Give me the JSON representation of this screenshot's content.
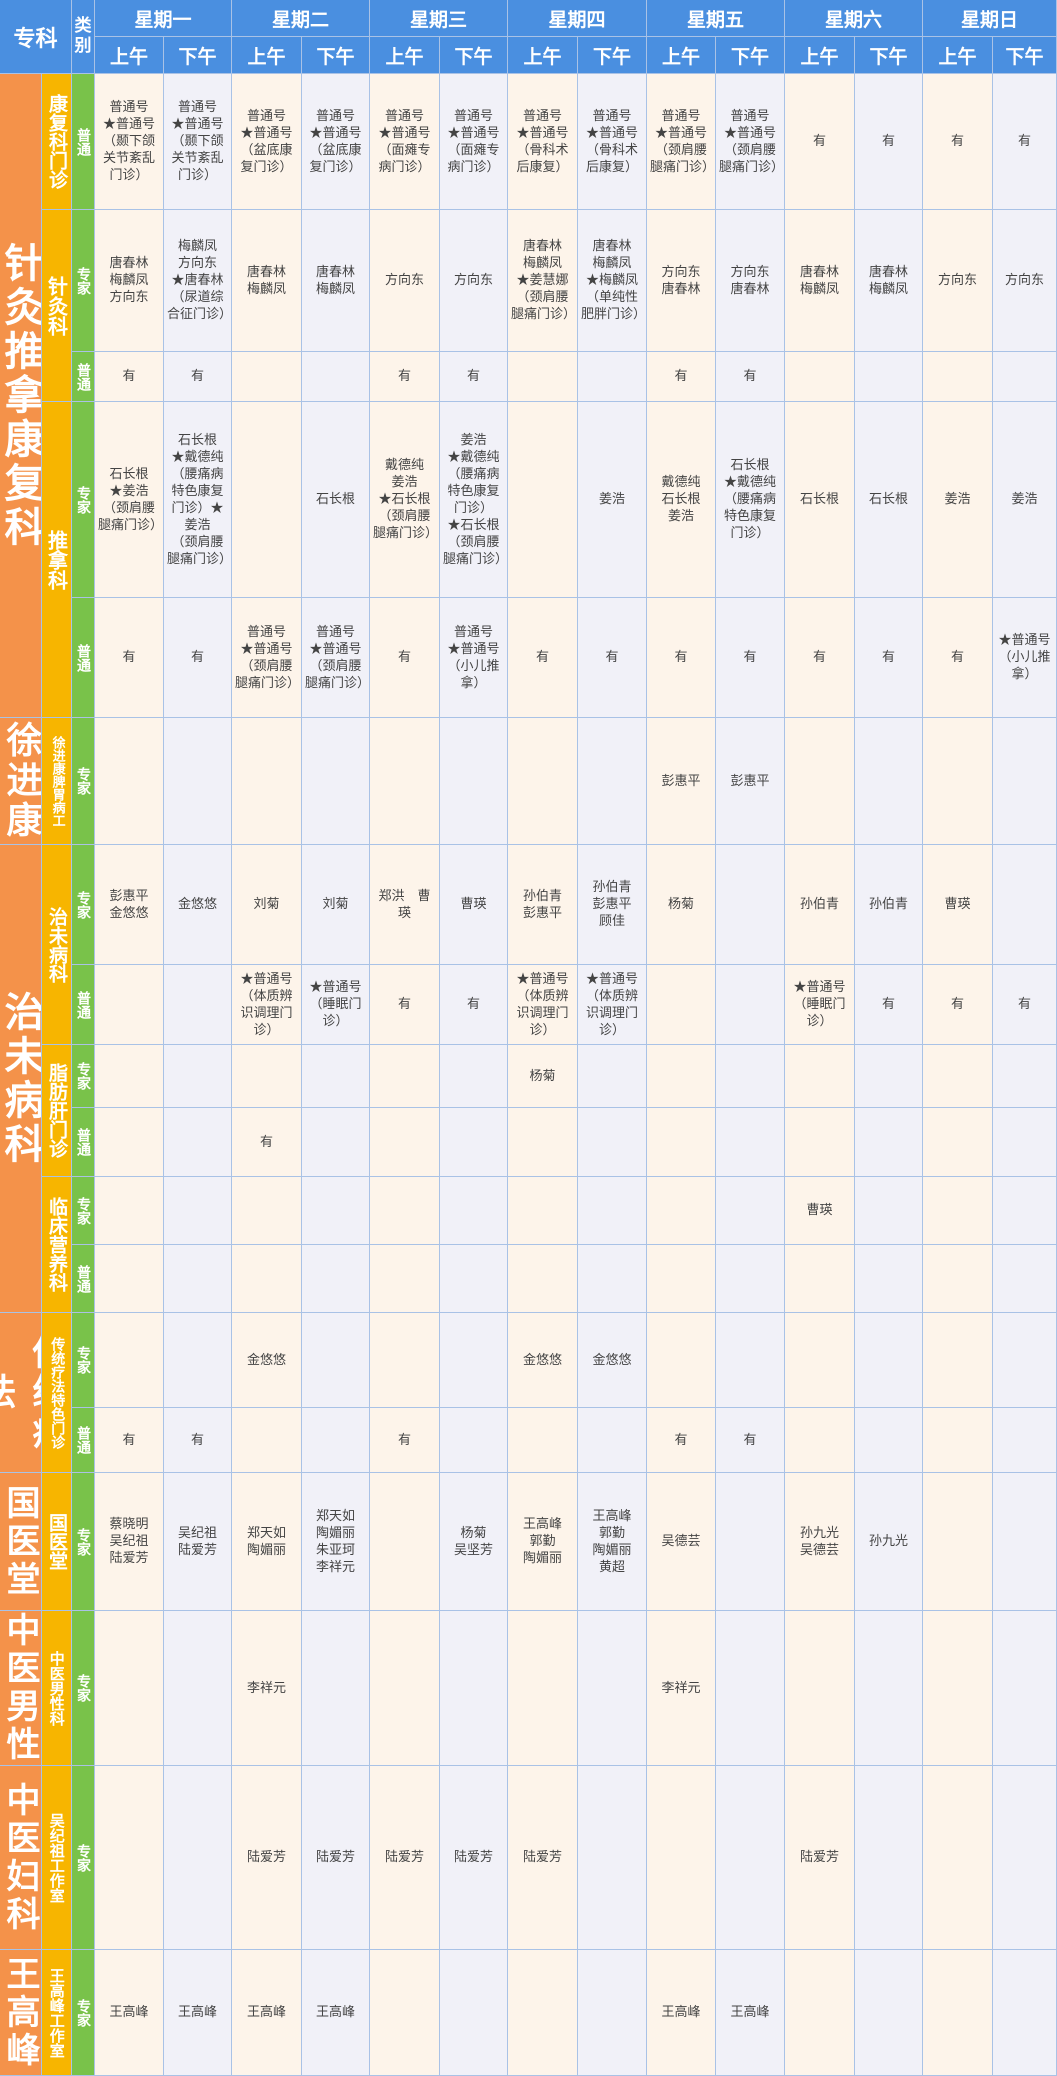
{
  "header": {
    "specialty_label": "专科",
    "type_label": "类别",
    "days": [
      "星期一",
      "星期二",
      "星期三",
      "星期四",
      "星期五",
      "星期六",
      "星期日"
    ],
    "am_label": "上午",
    "pm_label": "下午"
  },
  "departments": [
    {
      "name": "针灸推拿康复科"
    },
    {
      "name": "徐进康"
    },
    {
      "name": "治未病科"
    },
    {
      "name": "传统疗法"
    },
    {
      "name": "国医堂"
    },
    {
      "name": "中医男性"
    },
    {
      "name": "中医妇科"
    },
    {
      "name": "王高峰"
    }
  ],
  "subdepartments": [
    {
      "name": "康复科门诊"
    },
    {
      "name": "针灸科"
    },
    {
      "name": "推拿科"
    },
    {
      "name": "徐进康脾胃病工"
    },
    {
      "name": "治未病科"
    },
    {
      "name": "脂肪肝门诊"
    },
    {
      "name": "临床营养科"
    },
    {
      "name": "传统疗法特色门诊"
    },
    {
      "name": "国医堂"
    },
    {
      "name": "中医男性科"
    },
    {
      "name": "吴纪祖工作室"
    },
    {
      "name": "王高峰工作室"
    }
  ],
  "rows": [
    {
      "type": "普通",
      "cells": [
        "普通号\n★普通号\n（颞下颌关节紊乱门诊）",
        "普通号\n★普通号\n（颞下颌关节紊乱门诊）",
        "普通号\n★普通号\n（盆底康复门诊）",
        "普通号\n★普通号\n（盆底康复门诊）",
        "普通号\n★普通号\n（面瘫专病门诊）",
        "普通号\n★普通号\n（面瘫专病门诊）",
        "普通号\n★普通号\n（骨科术后康复）",
        "普通号\n★普通号\n（骨科术后康复）",
        "普通号\n★普通号\n（颈肩腰腿痛门诊）",
        "普通号\n★普通号\n（颈肩腰腿痛门诊）",
        "有",
        "有",
        "有",
        "有"
      ]
    },
    {
      "type": "专家",
      "cells": [
        "唐春林\n梅麟凤\n方向东",
        "梅麟凤\n方向东\n★唐春林\n（尿道综合征门诊）",
        "唐春林\n梅麟凤",
        "唐春林\n梅麟凤",
        "方向东",
        "方向东",
        "唐春林\n梅麟凤\n★姜慧娜\n（颈肩腰腿痛门诊）",
        "唐春林\n梅麟凤\n★梅麟凤\n（单纯性肥胖门诊）",
        "方向东\n唐春林",
        "方向东\n唐春林",
        "唐春林\n梅麟凤",
        "唐春林\n梅麟凤",
        "方向东",
        "方向东"
      ]
    },
    {
      "type": "普通",
      "cells": [
        "有",
        "有",
        "",
        "",
        "有",
        "有",
        "",
        "",
        "有",
        "有",
        "",
        "",
        "",
        ""
      ]
    },
    {
      "type": "专家",
      "cells": [
        "石长根\n★姜浩\n（颈肩腰腿痛门诊）",
        "石长根\n★戴德纯\n（腰痛病特色康复门诊）★姜浩\n（颈肩腰腿痛门诊）",
        "",
        "石长根",
        "戴德纯\n姜浩\n★石长根\n（颈肩腰腿痛门诊）",
        "姜浩\n★戴德纯\n（腰痛病特色康复门诊）\n★石长根\n（颈肩腰腿痛门诊）",
        "",
        "姜浩",
        "戴德纯\n石长根\n姜浩",
        "石长根\n★戴德纯\n（腰痛病特色康复门诊）",
        "石长根",
        "石长根",
        "姜浩",
        "姜浩"
      ]
    },
    {
      "type": "普通",
      "cells": [
        "有",
        "有",
        "普通号\n★普通号\n（颈肩腰腿痛门诊）",
        "普通号\n★普通号\n（颈肩腰腿痛门诊）",
        "有",
        "普通号\n★普通号\n（小儿推拿）",
        "有",
        "有",
        "有",
        "有",
        "有",
        "有",
        "有",
        "★普通号\n（小儿推拿）"
      ]
    },
    {
      "type": "专家",
      "cells": [
        "",
        "",
        "",
        "",
        "",
        "",
        "",
        "",
        "彭惠平",
        "彭惠平",
        "",
        "",
        "",
        ""
      ]
    },
    {
      "type": "专家",
      "cells": [
        "彭惠平\n金悠悠",
        "金悠悠",
        "刘菊",
        "刘菊",
        "郑洪　曹瑛",
        "曹瑛",
        "孙伯青\n彭惠平",
        "孙伯青\n彭惠平\n顾佳",
        "杨菊",
        "",
        "孙伯青",
        "孙伯青",
        "曹瑛",
        ""
      ]
    },
    {
      "type": "普通",
      "cells": [
        "",
        "",
        "★普通号\n（体质辨识调理门诊）",
        "★普通号\n（睡眠门诊）",
        "有",
        "有",
        "★普通号\n（体质辨识调理门诊）",
        "★普通号\n（体质辨识调理门诊）",
        "",
        "",
        "★普通号\n（睡眠门诊）",
        "有",
        "有",
        "有"
      ]
    },
    {
      "type": "专家",
      "cells": [
        "",
        "",
        "",
        "",
        "",
        "",
        "杨菊",
        "",
        "",
        "",
        "",
        "",
        "",
        ""
      ]
    },
    {
      "type": "普通",
      "cells": [
        "",
        "",
        "有",
        "",
        "",
        "",
        "",
        "",
        "",
        "",
        "",
        "",
        "",
        ""
      ]
    },
    {
      "type": "专家",
      "cells": [
        "",
        "",
        "",
        "",
        "",
        "",
        "",
        "",
        "",
        "",
        "曹瑛",
        "",
        "",
        ""
      ]
    },
    {
      "type": "普通",
      "cells": [
        "",
        "",
        "",
        "",
        "",
        "",
        "",
        "",
        "",
        "",
        "",
        "",
        "",
        ""
      ]
    },
    {
      "type": "专家",
      "cells": [
        "",
        "",
        "金悠悠",
        "",
        "",
        "",
        "金悠悠",
        "金悠悠",
        "",
        "",
        "",
        "",
        "",
        ""
      ]
    },
    {
      "type": "普通",
      "cells": [
        "有",
        "有",
        "",
        "",
        "有",
        "",
        "",
        "",
        "有",
        "有",
        "",
        "",
        "",
        ""
      ]
    },
    {
      "type": "专家",
      "cells": [
        "蔡晓明\n吴纪祖\n陆爱芳",
        "吴纪祖\n陆爱芳",
        "郑天如\n陶媚丽",
        "郑天如\n陶媚丽\n朱亚珂\n李祥元",
        "",
        "杨菊\n吴坚芳",
        "王高峰\n郭勤\n陶媚丽",
        "王高峰\n郭勤\n陶媚丽\n黄超",
        "吴德芸",
        "",
        "孙九光\n吴德芸",
        "孙九光",
        "",
        ""
      ]
    },
    {
      "type": "专家",
      "cells": [
        "",
        "",
        "李祥元",
        "",
        "",
        "",
        "",
        "",
        "李祥元",
        "",
        "",
        "",
        "",
        ""
      ]
    },
    {
      "type": "专家",
      "cells": [
        "",
        "",
        "陆爱芳",
        "陆爱芳",
        "陆爱芳",
        "陆爱芳",
        "陆爱芳",
        "",
        "",
        "",
        "陆爱芳",
        "",
        "",
        ""
      ]
    },
    {
      "type": "专家",
      "cells": [
        "王高峰",
        "王高峰",
        "王高峰",
        "王高峰",
        "",
        "",
        "",
        "",
        "王高峰",
        "王高峰",
        "",
        "",
        "",
        ""
      ]
    }
  ]
}
